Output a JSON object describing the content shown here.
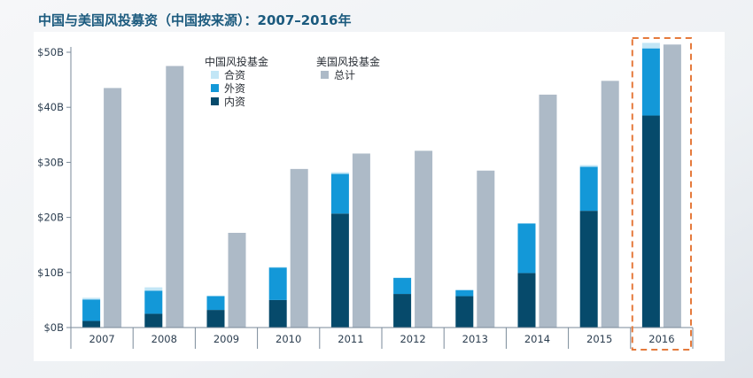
{
  "title": "中国与美国风投募资（中国按来源）：2007–2016年",
  "colors": {
    "title": "#1b5a7e",
    "domestic": "#064a6b",
    "foreign": "#1398d8",
    "joint": "#c2e6f6",
    "us_total": "#adbac7",
    "highlight": "#e57a3c",
    "axis": "#7a8a99",
    "plot_bg": "#ffffff"
  },
  "legend": {
    "china_heading": "中国风投基金",
    "us_heading": "美国风投基金",
    "items": [
      {
        "label": "合资",
        "color": "#c2e6f6"
      },
      {
        "label": "外资",
        "color": "#1398d8"
      },
      {
        "label": "内资",
        "color": "#064a6b"
      },
      {
        "label": "总计",
        "color": "#adbac7"
      }
    ]
  },
  "chart_data": {
    "type": "bar",
    "categories": [
      "2007",
      "2008",
      "2009",
      "2010",
      "2011",
      "2012",
      "2013",
      "2014",
      "2015",
      "2016"
    ],
    "series": [
      {
        "name": "内资",
        "group": "中国风投基金",
        "stack": "china",
        "values": [
          1.2,
          2.5,
          3.2,
          5.0,
          20.7,
          6.1,
          5.7,
          9.9,
          21.2,
          38.5
        ]
      },
      {
        "name": "外资",
        "group": "中国风投基金",
        "stack": "china",
        "values": [
          3.9,
          4.2,
          2.5,
          5.9,
          7.2,
          2.9,
          1.1,
          9.0,
          8.0,
          12.2
        ]
      },
      {
        "name": "合资",
        "group": "中国风投基金",
        "stack": "china",
        "values": [
          0.3,
          0.6,
          0.1,
          0.1,
          0.3,
          0.1,
          0.0,
          0.0,
          0.3,
          1.0
        ]
      },
      {
        "name": "总计",
        "group": "美国风投基金",
        "stack": "us",
        "values": [
          43.5,
          47.5,
          17.2,
          28.8,
          31.6,
          32.1,
          28.5,
          42.3,
          44.8,
          51.4
        ]
      }
    ],
    "y_ticks": [
      "$0B",
      "$10B",
      "$20B",
      "$30B",
      "$40B",
      "$50B"
    ],
    "ylim": [
      0,
      50
    ],
    "grid": false,
    "legend_position": "top-left",
    "highlight_category": "2016"
  }
}
